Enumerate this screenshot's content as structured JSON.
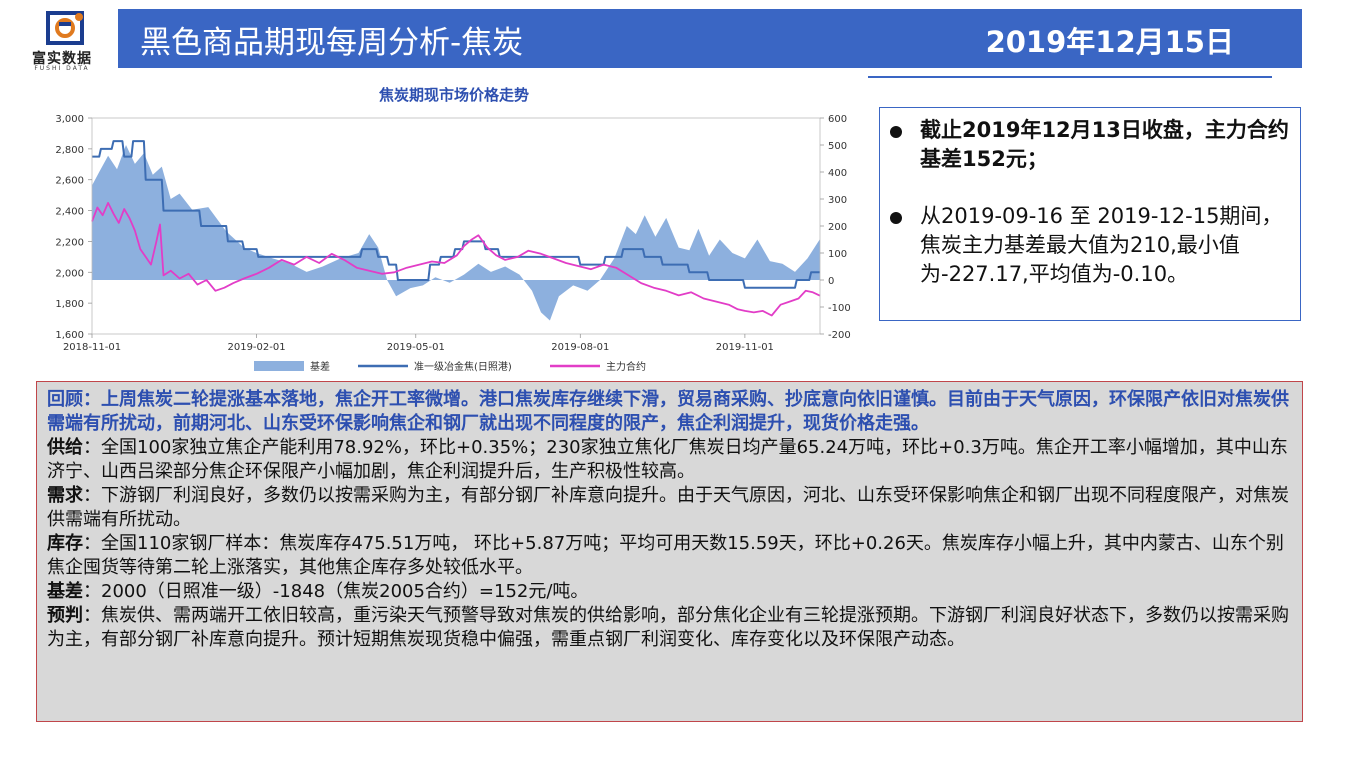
{
  "header": {
    "logo_text": "富实数据",
    "logo_sub": "FUSHI DATA",
    "title": "黑色商品期现每周分析-焦炭",
    "date": "2019年12月15日"
  },
  "colors": {
    "title_bar": "#3a66c4",
    "basis_area": "#8db0de",
    "spot_line": "#3d6db3",
    "futures_line": "#e23dc7",
    "analysis_bg": "#d8d8d8",
    "analysis_border": "#c0464a",
    "review_text": "#2d4fb0"
  },
  "chart_data": {
    "type": "line",
    "title": "焦炭期现市场价格走势",
    "x_tick_labels": [
      "2018-11-01",
      "2019-02-01",
      "2019-05-01",
      "2019-08-01",
      "2019-11-01"
    ],
    "x_range": [
      "2018-11-01",
      "2019-12-13"
    ],
    "y_left_ticks": [
      "1,600",
      "1,800",
      "2,000",
      "2,200",
      "2,400",
      "2,600",
      "2,800",
      "3,000"
    ],
    "y_left_range": [
      1600,
      3000
    ],
    "y_right_ticks": [
      "-200",
      "-100",
      "0",
      "100",
      "200",
      "300",
      "400",
      "500",
      "600"
    ],
    "y_right_range": [
      -200,
      600
    ],
    "grid": false,
    "legend_position": "bottom",
    "series": [
      {
        "name": "基差",
        "kind": "area",
        "axis": "right",
        "points": [
          [
            "2018-11-01",
            350
          ],
          [
            "2018-11-05",
            400
          ],
          [
            "2018-11-10",
            460
          ],
          [
            "2018-11-15",
            410
          ],
          [
            "2018-11-20",
            500
          ],
          [
            "2018-11-25",
            430
          ],
          [
            "2018-11-30",
            470
          ],
          [
            "2018-12-05",
            390
          ],
          [
            "2018-12-10",
            420
          ],
          [
            "2018-12-15",
            300
          ],
          [
            "2018-12-20",
            320
          ],
          [
            "2018-12-27",
            260
          ],
          [
            "2019-01-05",
            270
          ],
          [
            "2019-01-15",
            180
          ],
          [
            "2019-01-25",
            120
          ],
          [
            "2019-02-01",
            100
          ],
          [
            "2019-02-10",
            80
          ],
          [
            "2019-02-20",
            60
          ],
          [
            "2019-03-01",
            30
          ],
          [
            "2019-03-10",
            50
          ],
          [
            "2019-03-20",
            80
          ],
          [
            "2019-03-30",
            100
          ],
          [
            "2019-04-05",
            170
          ],
          [
            "2019-04-10",
            120
          ],
          [
            "2019-04-15",
            0
          ],
          [
            "2019-04-20",
            -60
          ],
          [
            "2019-04-28",
            -30
          ],
          [
            "2019-05-05",
            -20
          ],
          [
            "2019-05-12",
            10
          ],
          [
            "2019-05-20",
            -10
          ],
          [
            "2019-05-28",
            20
          ],
          [
            "2019-06-05",
            60
          ],
          [
            "2019-06-12",
            30
          ],
          [
            "2019-06-20",
            50
          ],
          [
            "2019-06-28",
            20
          ],
          [
            "2019-07-05",
            -40
          ],
          [
            "2019-07-10",
            -120
          ],
          [
            "2019-07-15",
            -150
          ],
          [
            "2019-07-20",
            -60
          ],
          [
            "2019-07-28",
            -20
          ],
          [
            "2019-08-05",
            -40
          ],
          [
            "2019-08-12",
            0
          ],
          [
            "2019-08-20",
            80
          ],
          [
            "2019-08-27",
            200
          ],
          [
            "2019-09-01",
            170
          ],
          [
            "2019-09-06",
            240
          ],
          [
            "2019-09-12",
            160
          ],
          [
            "2019-09-18",
            230
          ],
          [
            "2019-09-25",
            120
          ],
          [
            "2019-10-01",
            110
          ],
          [
            "2019-10-06",
            190
          ],
          [
            "2019-10-12",
            90
          ],
          [
            "2019-10-18",
            150
          ],
          [
            "2019-10-25",
            100
          ],
          [
            "2019-11-01",
            80
          ],
          [
            "2019-11-08",
            150
          ],
          [
            "2019-11-15",
            70
          ],
          [
            "2019-11-22",
            60
          ],
          [
            "2019-11-29",
            30
          ],
          [
            "2019-12-06",
            80
          ],
          [
            "2019-12-13",
            152
          ]
        ]
      },
      {
        "name": "准一级冶金焦(日照港)",
        "kind": "line",
        "axis": "left",
        "points": [
          [
            "2018-11-01",
            2750
          ],
          [
            "2018-11-05",
            2750
          ],
          [
            "2018-11-06",
            2800
          ],
          [
            "2018-11-12",
            2800
          ],
          [
            "2018-11-13",
            2850
          ],
          [
            "2018-11-18",
            2850
          ],
          [
            "2018-11-19",
            2750
          ],
          [
            "2018-11-23",
            2750
          ],
          [
            "2018-11-24",
            2850
          ],
          [
            "2018-11-30",
            2850
          ],
          [
            "2018-12-01",
            2600
          ],
          [
            "2018-12-10",
            2600
          ],
          [
            "2018-12-11",
            2400
          ],
          [
            "2018-12-31",
            2400
          ],
          [
            "2019-01-01",
            2300
          ],
          [
            "2019-01-15",
            2300
          ],
          [
            "2019-01-16",
            2200
          ],
          [
            "2019-01-24",
            2200
          ],
          [
            "2019-01-25",
            2150
          ],
          [
            "2019-02-01",
            2150
          ],
          [
            "2019-02-02",
            2100
          ],
          [
            "2019-03-31",
            2100
          ],
          [
            "2019-04-01",
            2150
          ],
          [
            "2019-04-09",
            2150
          ],
          [
            "2019-04-10",
            2100
          ],
          [
            "2019-04-15",
            2100
          ],
          [
            "2019-04-16",
            2050
          ],
          [
            "2019-04-20",
            2050
          ],
          [
            "2019-04-21",
            1950
          ],
          [
            "2019-05-08",
            1950
          ],
          [
            "2019-05-09",
            2050
          ],
          [
            "2019-05-14",
            2050
          ],
          [
            "2019-05-15",
            2100
          ],
          [
            "2019-05-22",
            2100
          ],
          [
            "2019-05-23",
            2150
          ],
          [
            "2019-05-27",
            2150
          ],
          [
            "2019-05-28",
            2200
          ],
          [
            "2019-06-08",
            2200
          ],
          [
            "2019-06-09",
            2150
          ],
          [
            "2019-06-16",
            2150
          ],
          [
            "2019-06-17",
            2100
          ],
          [
            "2019-07-31",
            2100
          ],
          [
            "2019-08-01",
            2050
          ],
          [
            "2019-08-14",
            2050
          ],
          [
            "2019-08-15",
            2100
          ],
          [
            "2019-08-24",
            2100
          ],
          [
            "2019-08-25",
            2150
          ],
          [
            "2019-09-05",
            2150
          ],
          [
            "2019-09-06",
            2100
          ],
          [
            "2019-09-15",
            2100
          ],
          [
            "2019-09-16",
            2050
          ],
          [
            "2019-09-30",
            2050
          ],
          [
            "2019-10-01",
            2000
          ],
          [
            "2019-10-11",
            2000
          ],
          [
            "2019-10-12",
            1950
          ],
          [
            "2019-10-31",
            1950
          ],
          [
            "2019-11-01",
            1900
          ],
          [
            "2019-11-29",
            1900
          ],
          [
            "2019-11-30",
            1950
          ],
          [
            "2019-12-07",
            1950
          ],
          [
            "2019-12-08",
            2000
          ],
          [
            "2019-12-13",
            2000
          ]
        ]
      },
      {
        "name": "主力合约",
        "kind": "line",
        "axis": "left",
        "points": [
          [
            "2018-11-01",
            2330
          ],
          [
            "2018-11-04",
            2420
          ],
          [
            "2018-11-07",
            2370
          ],
          [
            "2018-11-10",
            2450
          ],
          [
            "2018-11-13",
            2380
          ],
          [
            "2018-11-16",
            2320
          ],
          [
            "2018-11-19",
            2410
          ],
          [
            "2018-11-22",
            2350
          ],
          [
            "2018-11-25",
            2270
          ],
          [
            "2018-11-28",
            2150
          ],
          [
            "2018-12-01",
            2100
          ],
          [
            "2018-12-04",
            2050
          ],
          [
            "2018-12-07",
            2200
          ],
          [
            "2018-12-09",
            2310
          ],
          [
            "2018-12-11",
            1980
          ],
          [
            "2018-12-15",
            2010
          ],
          [
            "2018-12-20",
            1960
          ],
          [
            "2018-12-25",
            1990
          ],
          [
            "2018-12-30",
            1920
          ],
          [
            "2019-01-04",
            1950
          ],
          [
            "2019-01-09",
            1880
          ],
          [
            "2019-01-14",
            1900
          ],
          [
            "2019-01-19",
            1930
          ],
          [
            "2019-01-25",
            1960
          ],
          [
            "2019-02-01",
            1990
          ],
          [
            "2019-02-08",
            2030
          ],
          [
            "2019-02-15",
            2080
          ],
          [
            "2019-02-22",
            2050
          ],
          [
            "2019-03-01",
            2100
          ],
          [
            "2019-03-08",
            2060
          ],
          [
            "2019-03-15",
            2120
          ],
          [
            "2019-03-22",
            2080
          ],
          [
            "2019-03-29",
            2030
          ],
          [
            "2019-04-05",
            2010
          ],
          [
            "2019-04-12",
            1990
          ],
          [
            "2019-04-19",
            2000
          ],
          [
            "2019-04-26",
            2030
          ],
          [
            "2019-05-03",
            2050
          ],
          [
            "2019-05-10",
            2070
          ],
          [
            "2019-05-17",
            2060
          ],
          [
            "2019-05-24",
            2110
          ],
          [
            "2019-05-28",
            2170
          ],
          [
            "2019-06-01",
            2210
          ],
          [
            "2019-06-05",
            2240
          ],
          [
            "2019-06-10",
            2160
          ],
          [
            "2019-06-15",
            2110
          ],
          [
            "2019-06-20",
            2080
          ],
          [
            "2019-06-27",
            2100
          ],
          [
            "2019-07-03",
            2140
          ],
          [
            "2019-07-10",
            2120
          ],
          [
            "2019-07-17",
            2090
          ],
          [
            "2019-07-24",
            2060
          ],
          [
            "2019-07-31",
            2040
          ],
          [
            "2019-08-07",
            2020
          ],
          [
            "2019-08-14",
            2050
          ],
          [
            "2019-08-21",
            2030
          ],
          [
            "2019-08-28",
            1980
          ],
          [
            "2019-09-04",
            1930
          ],
          [
            "2019-09-11",
            1900
          ],
          [
            "2019-09-18",
            1880
          ],
          [
            "2019-09-25",
            1850
          ],
          [
            "2019-10-02",
            1870
          ],
          [
            "2019-10-09",
            1830
          ],
          [
            "2019-10-16",
            1810
          ],
          [
            "2019-10-23",
            1790
          ],
          [
            "2019-10-28",
            1760
          ],
          [
            "2019-11-01",
            1750
          ],
          [
            "2019-11-06",
            1740
          ],
          [
            "2019-11-11",
            1750
          ],
          [
            "2019-11-16",
            1720
          ],
          [
            "2019-11-21",
            1790
          ],
          [
            "2019-11-26",
            1810
          ],
          [
            "2019-12-01",
            1830
          ],
          [
            "2019-12-05",
            1880
          ],
          [
            "2019-12-09",
            1870
          ],
          [
            "2019-12-13",
            1848
          ]
        ]
      }
    ]
  },
  "bullets": [
    "截止2019年12月13日收盘，主力合约基差152元；",
    "从2019-09-16 至 2019-12-15期间，焦炭主力基差最大值为210,最小值为-227.17,平均值为-0.10。"
  ],
  "analysis": {
    "review": "回顾：上周焦炭二轮提涨基本落地，焦企开工率微增。港口焦炭库存继续下滑，贸易商采购、抄底意向依旧谨慎。目前由于天气原因，环保限产依旧对焦炭供需端有所扰动，前期河北、山东受环保影响焦企和钢厂就出现不同程度的限产，焦企利润提升，现货价格走强。",
    "supply_label": "供给",
    "supply_text": "：全国100家独立焦企产能利用78.92%，环比+0.35%；230家独立焦化厂焦炭日均产量65.24万吨，环比+0.3万吨。焦企开工率小幅增加，其中山东济宁、山西吕梁部分焦企环保限产小幅加剧，焦企利润提升后，生产积极性较高。",
    "demand_label": "需求",
    "demand_text": "：下游钢厂利润良好，多数仍以按需采购为主，有部分钢厂补库意向提升。由于天气原因，河北、山东受环保影响焦企和钢厂出现不同程度限产，对焦炭供需端有所扰动。",
    "inventory_label": "库存",
    "inventory_text": "：全国110家钢厂样本：焦炭库存475.51万吨， 环比+5.87万吨；平均可用天数15.59天，环比+0.26天。焦炭库存小幅上升，其中内蒙古、山东个别焦企囤货等待第二轮上涨落实，其他焦企库存多处较低水平。",
    "basis_label": "基差",
    "basis_text": "：2000（日照准一级）-1848（焦炭2005合约）=152元/吨。",
    "forecast_label": "预判",
    "forecast_text": "：焦炭供、需两端开工依旧较高，重污染天气预警导致对焦炭的供给影响，部分焦化企业有三轮提涨预期。下游钢厂利润良好状态下，多数仍以按需采购为主，有部分钢厂补库意向提升。预计短期焦炭现货稳中偏强，需重点钢厂利润变化、库存变化以及环保限产动态。"
  }
}
